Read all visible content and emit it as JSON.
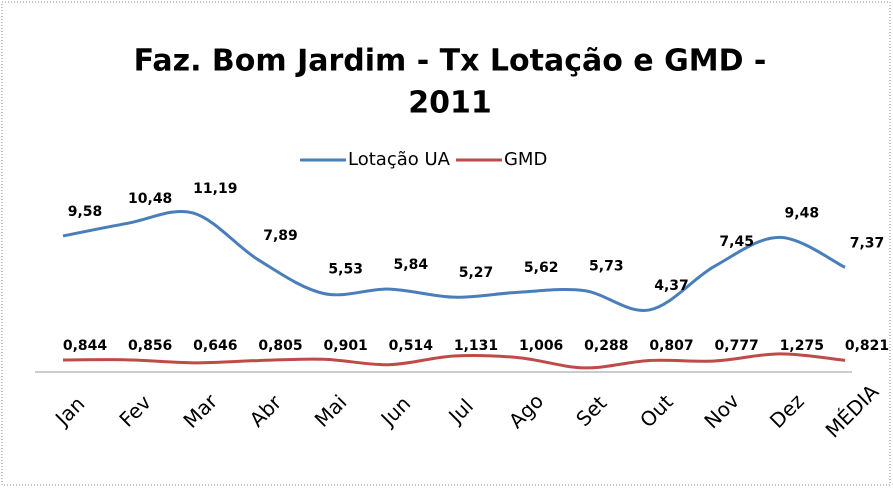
{
  "chart_data": {
    "type": "line",
    "title": [
      "Faz. Bom Jardim - Tx Lotação e GMD -",
      "2011"
    ],
    "categories": [
      "Jan",
      "Fev",
      "Mar",
      "Abr",
      "Mai",
      "Jun",
      "Jul",
      "Ago",
      "Set",
      "Out",
      "Nov",
      "Dez",
      "MÉDIA"
    ],
    "series": [
      {
        "name": "Lotação UA",
        "color": "#4a7ebb",
        "values": [
          9.58,
          10.48,
          11.19,
          7.89,
          5.53,
          5.84,
          5.27,
          5.62,
          5.73,
          4.37,
          7.45,
          9.48,
          7.37
        ],
        "value_labels": [
          "9,58",
          "10,48",
          "11,19",
          "7,89",
          "5,53",
          "5,84",
          "5,27",
          "5,62",
          "5,73",
          "4,37",
          "7,45",
          "9,48",
          "7,37"
        ]
      },
      {
        "name": "GMD",
        "color": "#be4b48",
        "values": [
          0.844,
          0.856,
          0.646,
          0.805,
          0.901,
          0.514,
          1.131,
          1.006,
          0.288,
          0.807,
          0.777,
          1.275,
          0.821
        ],
        "value_labels": [
          "0,844",
          "0,856",
          "0,646",
          "0,805",
          "0,901",
          "0,514",
          "1,131",
          "1,006",
          "0,288",
          "0,807",
          "0,777",
          "1,275",
          "0,821"
        ]
      }
    ],
    "legend": "top"
  }
}
